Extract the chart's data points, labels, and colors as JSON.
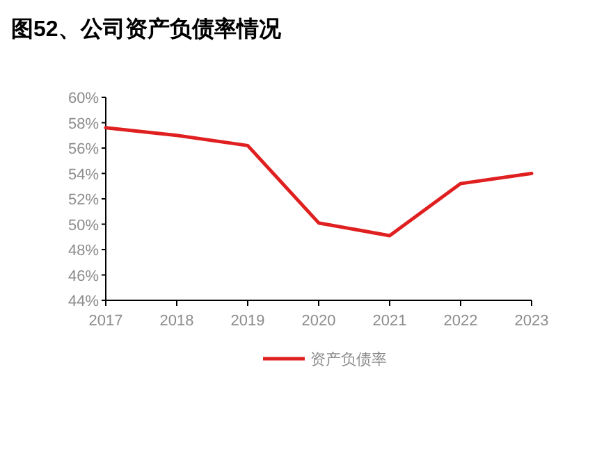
{
  "chart_data": {
    "type": "line",
    "title": "图52、公司资产负债率情况",
    "categories": [
      "2017",
      "2018",
      "2019",
      "2020",
      "2021",
      "2022",
      "2023"
    ],
    "series": [
      {
        "name": "资产负债率",
        "color": "#e02020",
        "values": [
          57.6,
          57.0,
          56.2,
          50.1,
          49.1,
          53.2,
          54.0
        ]
      }
    ],
    "ylim": [
      44,
      60
    ],
    "yticks": [
      {
        "value": 44,
        "label": "44%"
      },
      {
        "value": 46,
        "label": "46%"
      },
      {
        "value": 48,
        "label": "48%"
      },
      {
        "value": 50,
        "label": "50%"
      },
      {
        "value": 52,
        "label": "52%"
      },
      {
        "value": 54,
        "label": "54%"
      },
      {
        "value": 56,
        "label": "56%"
      },
      {
        "value": 58,
        "label": "58%"
      },
      {
        "value": 60,
        "label": "60%"
      }
    ],
    "grid": false,
    "legend": "bottom",
    "marker": "none",
    "line_style": "solid"
  }
}
